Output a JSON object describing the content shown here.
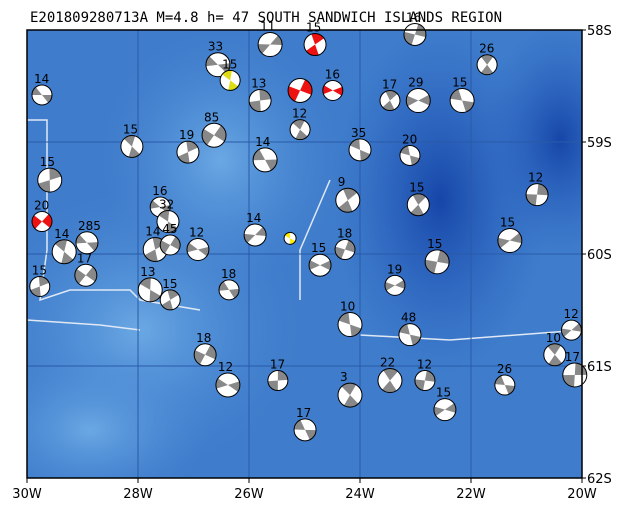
{
  "map": {
    "title": "E201809280713A  M=4.8  h=  47   SOUTH SANDWICH ISLANDS REGION",
    "lonlim": [
      -30,
      -20
    ],
    "latlim": [
      -58,
      -62
    ],
    "lonticks": [
      {
        "value": -30,
        "label": "30W"
      },
      {
        "value": -28,
        "label": "28W"
      },
      {
        "value": -26,
        "label": "26W"
      },
      {
        "value": -24,
        "label": "24W"
      },
      {
        "value": -22,
        "label": "22W"
      },
      {
        "value": -20,
        "label": "20W"
      }
    ],
    "latticks": [
      {
        "value": -58,
        "label": "58S"
      },
      {
        "value": -59,
        "label": "59S"
      },
      {
        "value": -60,
        "label": "60S"
      },
      {
        "value": -61,
        "label": "61S"
      },
      {
        "value": -62,
        "label": "62S"
      }
    ],
    "events": [
      {
        "lon": -29.73,
        "lat": -58.58,
        "depth": 14,
        "color": "#888888"
      },
      {
        "lon": -28.11,
        "lat": -59.04,
        "depth": 15,
        "color": "#888888"
      },
      {
        "lon": -29.59,
        "lat": -59.34,
        "depth": 15,
        "color": "#888888"
      },
      {
        "lon": -29.73,
        "lat": -59.71,
        "depth": 20,
        "color": "#ee1111"
      },
      {
        "lon": -28.92,
        "lat": -59.9,
        "depth": 285,
        "color": "#888888"
      },
      {
        "lon": -29.33,
        "lat": -59.98,
        "depth": 14,
        "color": "#888888"
      },
      {
        "lon": -29.77,
        "lat": -60.29,
        "depth": 15,
        "color": "#888888"
      },
      {
        "lon": -28.94,
        "lat": -60.19,
        "depth": 17,
        "color": "#888888"
      },
      {
        "lon": -26.56,
        "lat": -58.31,
        "depth": 33,
        "color": "#888888"
      },
      {
        "lon": -26.34,
        "lat": -58.45,
        "depth": 15,
        "color": "#dddd11"
      },
      {
        "lon": -27.1,
        "lat": -59.09,
        "depth": 19,
        "color": "#888888"
      },
      {
        "lon": -26.63,
        "lat": -58.94,
        "depth": 85,
        "color": "#888888"
      },
      {
        "lon": -27.6,
        "lat": -59.58,
        "depth": 16,
        "color": "#888888"
      },
      {
        "lon": -27.46,
        "lat": -59.71,
        "depth": 32,
        "color": "#888888"
      },
      {
        "lon": -27.69,
        "lat": -59.96,
        "depth": 14,
        "color": "#888888"
      },
      {
        "lon": -27.42,
        "lat": -59.92,
        "depth": 45,
        "color": "#888888"
      },
      {
        "lon": -26.92,
        "lat": -59.96,
        "depth": 12,
        "color": "#888888"
      },
      {
        "lon": -27.78,
        "lat": -60.32,
        "depth": 13,
        "color": "#888888"
      },
      {
        "lon": -27.42,
        "lat": -60.41,
        "depth": 15,
        "color": "#888888"
      },
      {
        "lon": -26.79,
        "lat": -60.9,
        "depth": 18,
        "color": "#888888"
      },
      {
        "lon": -26.38,
        "lat": -61.17,
        "depth": 12,
        "color": "#888888"
      },
      {
        "lon": -25.26,
        "lat": -59.86,
        "color": "#ffee00"
      },
      {
        "lon": -24.81,
        "lat": -58.13,
        "depth": 15,
        "color": "#ee1111"
      },
      {
        "lon": -25.08,
        "lat": -58.54,
        "color": "#ee1111"
      },
      {
        "lon": -24.49,
        "lat": -58.54,
        "depth": 16,
        "color": "#ee1111"
      },
      {
        "lon": -24.0,
        "lat": -59.07,
        "depth": 35,
        "color": "#888888"
      },
      {
        "lon": -24.22,
        "lat": -59.52,
        "depth": 9,
        "color": "#888888"
      },
      {
        "lon": -24.27,
        "lat": -59.96,
        "depth": 18,
        "color": "#888888"
      },
      {
        "lon": -24.72,
        "lat": -60.1,
        "depth": 15,
        "color": "#888888"
      },
      {
        "lon": -24.18,
        "lat": -60.63,
        "depth": 10,
        "color": "#888888"
      },
      {
        "lon": -23.46,
        "lat": -58.63,
        "depth": 17,
        "color": "#888888"
      },
      {
        "lon": -23.01,
        "lat": -58.04,
        "depth": 16,
        "color": "#888888"
      },
      {
        "lon": -22.95,
        "lat": -58.63,
        "depth": 29,
        "color": "#888888"
      },
      {
        "lon": -23.1,
        "lat": -59.12,
        "depth": 20,
        "color": "#888888"
      },
      {
        "lon": -22.95,
        "lat": -59.56,
        "depth": 15,
        "color": "#888888"
      },
      {
        "lon": -22.61,
        "lat": -60.07,
        "depth": 15,
        "color": "#888888"
      },
      {
        "lon": -23.37,
        "lat": -60.28,
        "depth": 19,
        "color": "#888888"
      },
      {
        "lon": -23.1,
        "lat": -60.72,
        "depth": 48,
        "color": "#888888"
      },
      {
        "lon": -23.46,
        "lat": -61.13,
        "depth": 22,
        "color": "#888888"
      },
      {
        "lon": -22.83,
        "lat": -61.13,
        "depth": 12,
        "color": "#888888"
      },
      {
        "lon": -22.47,
        "lat": -61.39,
        "depth": 15,
        "color": "#888888"
      },
      {
        "lon": -22.16,
        "lat": -58.63,
        "depth": 15,
        "color": "#888888"
      },
      {
        "lon": -21.71,
        "lat": -58.31,
        "depth": 26,
        "color": "#888888"
      },
      {
        "lon": -20.81,
        "lat": -59.47,
        "depth": 12,
        "color": "#888888"
      },
      {
        "lon": -21.3,
        "lat": -59.88,
        "depth": 15,
        "color": "#888888"
      },
      {
        "lon": -21.39,
        "lat": -61.17,
        "depth": 26,
        "color": "#888888"
      },
      {
        "lon": -20.49,
        "lat": -60.9,
        "depth": 10,
        "color": "#888888"
      },
      {
        "lon": -20.13,
        "lat": -61.08,
        "depth": 17,
        "color": "#888888"
      },
      {
        "lon": -20.19,
        "lat": -60.68,
        "depth": 12,
        "color": "#888888"
      },
      {
        "lon": -24.99,
        "lat": -61.57,
        "depth": 17,
        "color": "#888888"
      },
      {
        "lon": -24.18,
        "lat": -61.26,
        "depth": 3,
        "color": "#888888"
      },
      {
        "lon": -25.48,
        "lat": -61.13,
        "depth": 17,
        "color": "#888888"
      },
      {
        "lon": -25.89,
        "lat": -59.83,
        "depth": 14,
        "color": "#888888"
      },
      {
        "lon": -25.71,
        "lat": -59.16,
        "depth": 14,
        "color": "#888888"
      },
      {
        "lon": -25.08,
        "lat": -58.89,
        "depth": 12,
        "color": "#888888"
      },
      {
        "lon": -25.8,
        "lat": -58.63,
        "depth": 13,
        "color": "#888888"
      },
      {
        "lon": -25.62,
        "lat": -58.13,
        "depth": 11,
        "color": "#888888"
      },
      {
        "lon": -26.36,
        "lat": -60.32,
        "depth": 18,
        "color": "#888888"
      }
    ]
  }
}
